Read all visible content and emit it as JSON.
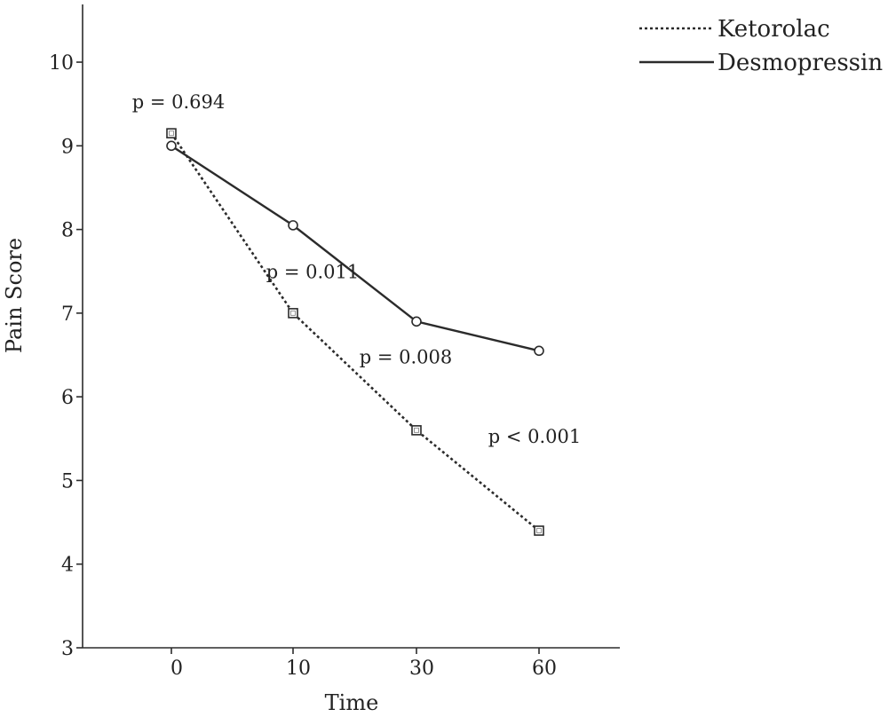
{
  "chart_data": {
    "type": "line",
    "xlabel": "Time",
    "ylabel": "Pain Score",
    "categories": [
      "0",
      "10",
      "30",
      "60"
    ],
    "ylim": [
      3,
      10.5
    ],
    "yticks": [
      3,
      4,
      5,
      6,
      7,
      8,
      9,
      10
    ],
    "grid": false,
    "legend_position": "top-right",
    "series": [
      {
        "name": "Ketorolac",
        "style": "dotted",
        "marker": "square",
        "values": [
          9.15,
          7.0,
          5.6,
          4.4
        ]
      },
      {
        "name": "Desmopressin",
        "style": "solid",
        "marker": "circle",
        "values": [
          9.0,
          8.05,
          6.9,
          6.55
        ]
      }
    ],
    "annotations": [
      {
        "text": "p = 0.694",
        "category": "0",
        "y": 9.45
      },
      {
        "text": "p = 0.011",
        "category": "10",
        "y": 7.42
      },
      {
        "text": "p = 0.008",
        "category": "30",
        "y": 6.4
      },
      {
        "text": "p < 0.001",
        "category": "60",
        "y": 5.45
      }
    ],
    "colors": {
      "line": "#2b2b2b",
      "marker_fill": "#ffffff"
    }
  }
}
